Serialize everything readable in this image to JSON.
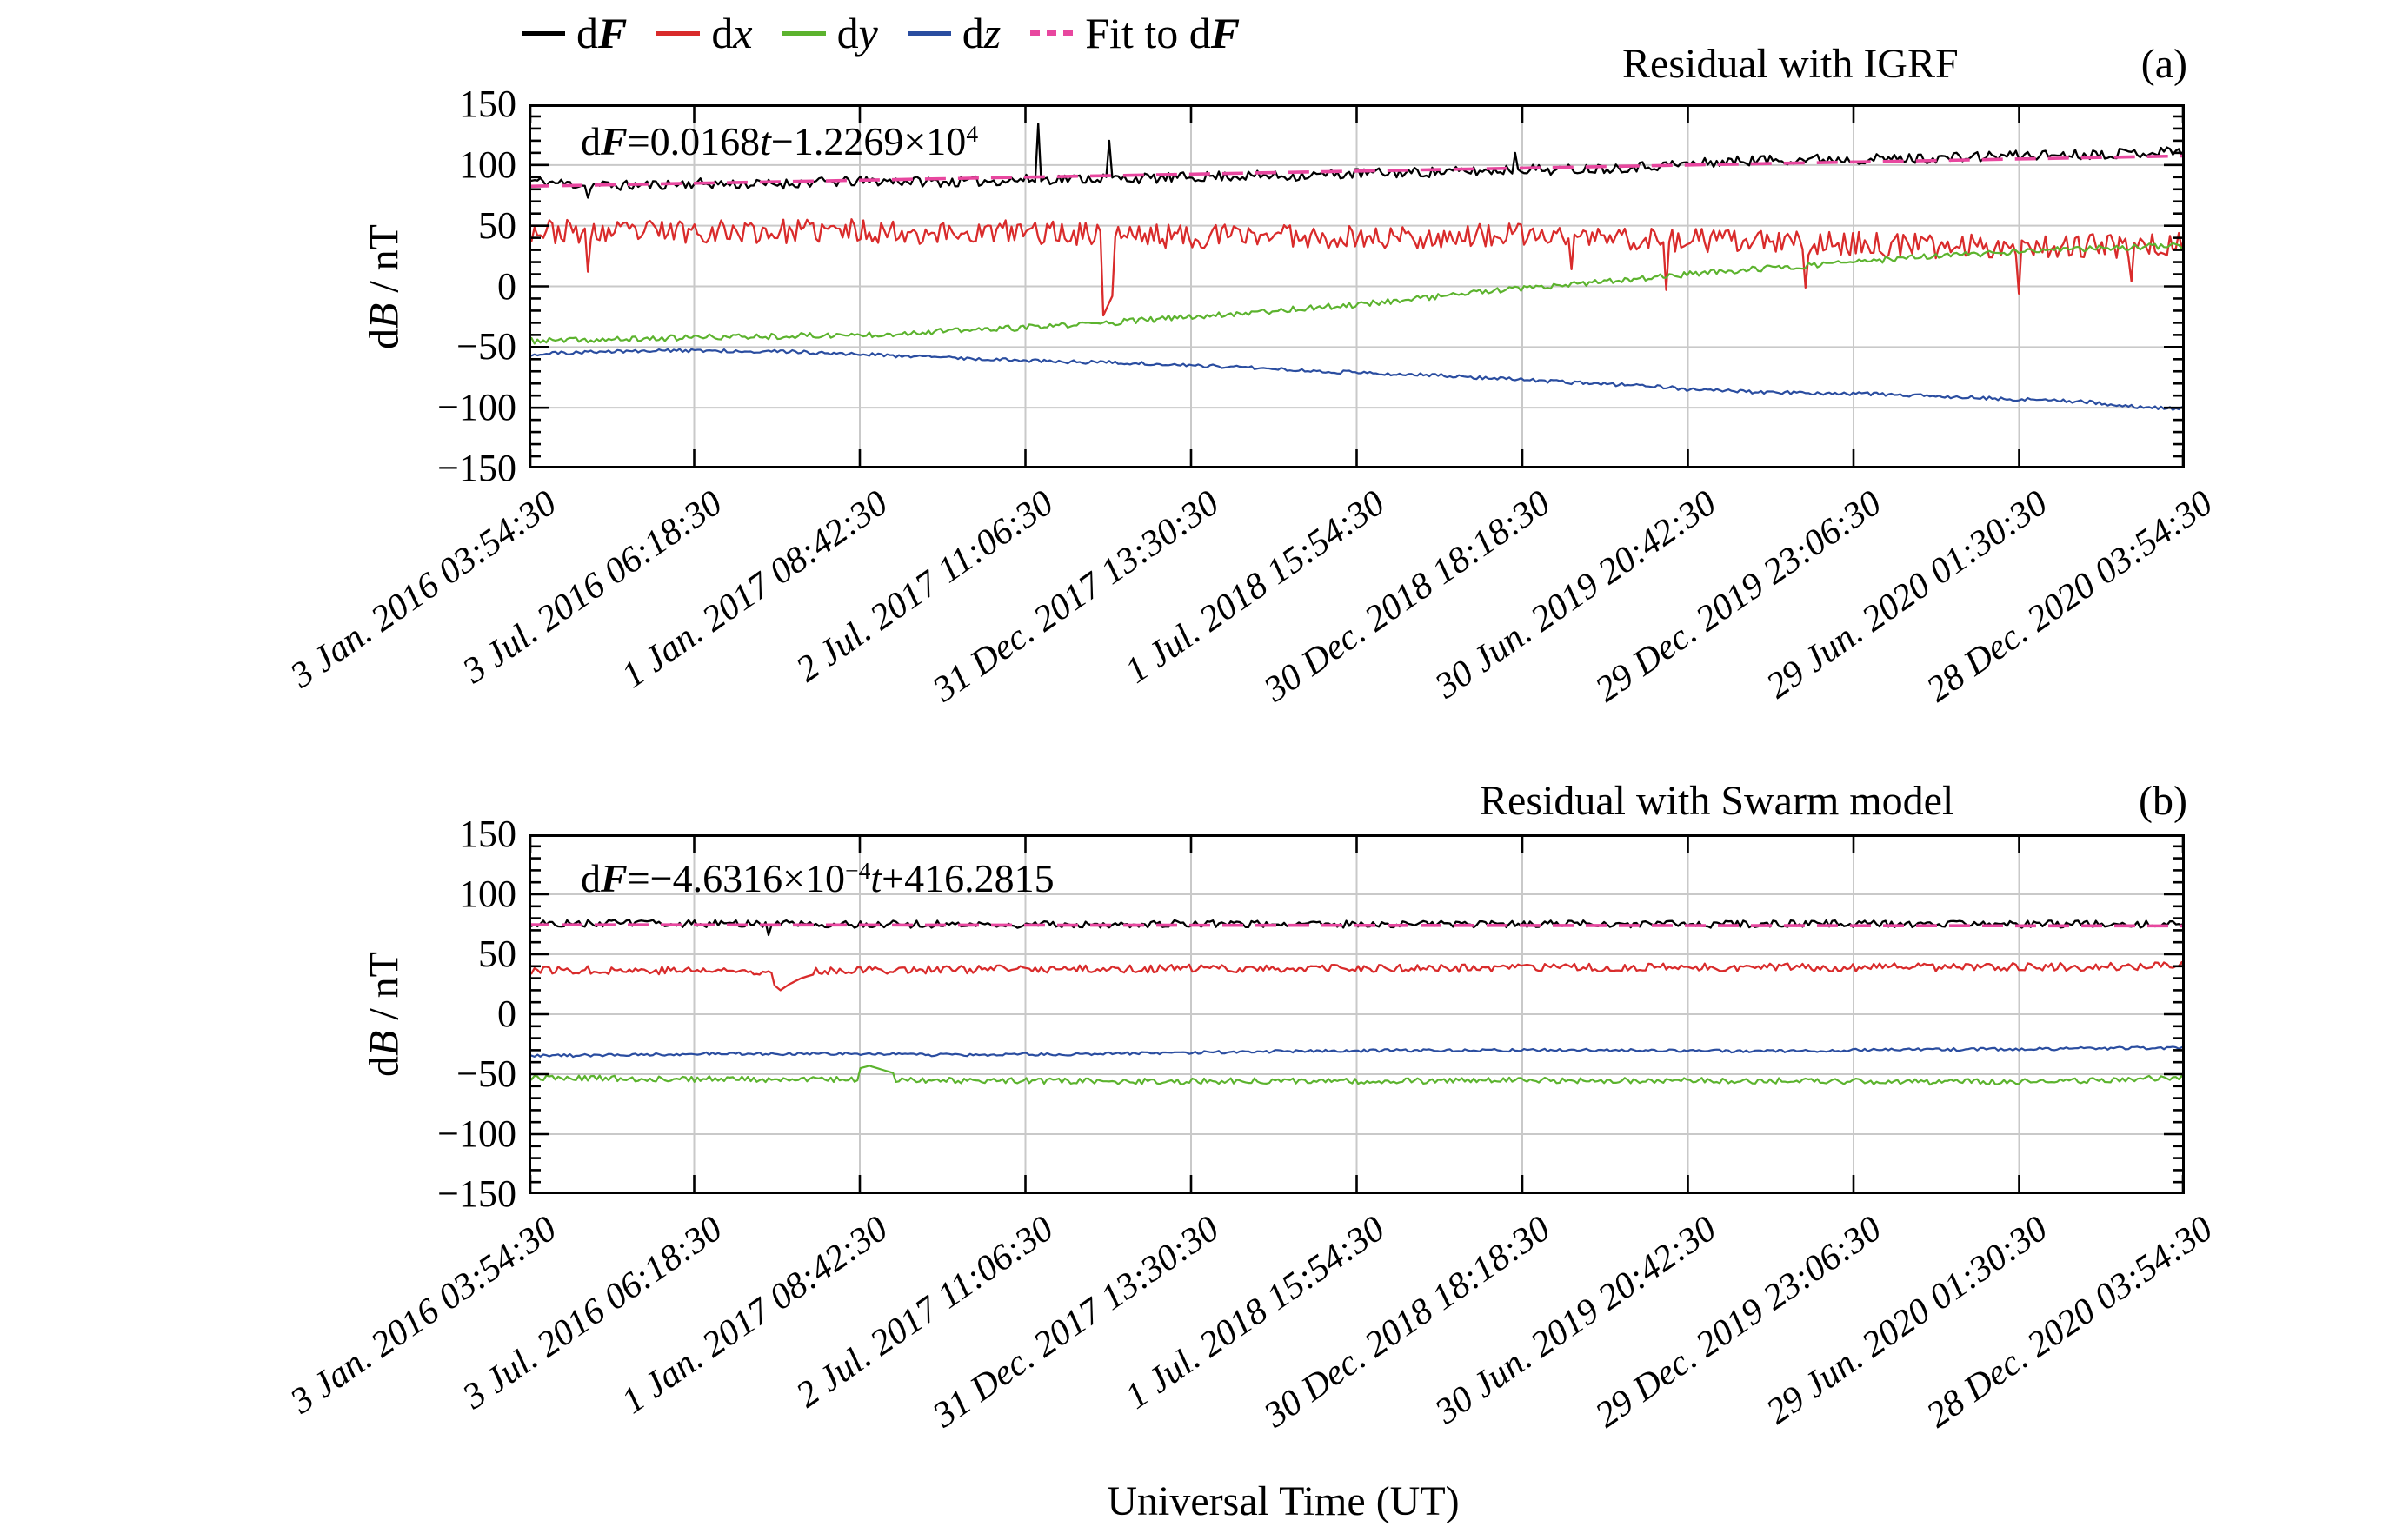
{
  "colors": {
    "dF": "#000000",
    "dx": "#d92b2b",
    "dy": "#5cb32e",
    "dz": "#2a4da0",
    "fit": "#e8479f",
    "grid": "#c9c9c9",
    "frame": "#000000",
    "background": "#ffffff"
  },
  "legend": {
    "items": [
      {
        "name": "dF",
        "label": "dF",
        "parts": [
          {
            "text": "d"
          },
          {
            "text": "F",
            "style": "bi"
          }
        ],
        "color": "#000000",
        "line": "solid"
      },
      {
        "name": "dx",
        "label": "dx",
        "parts": [
          {
            "text": "d"
          },
          {
            "text": "x",
            "style": "i"
          }
        ],
        "color": "#d92b2b",
        "line": "solid"
      },
      {
        "name": "dy",
        "label": "dy",
        "parts": [
          {
            "text": "d"
          },
          {
            "text": "y",
            "style": "i"
          }
        ],
        "color": "#5cb32e",
        "line": "solid"
      },
      {
        "name": "dz",
        "label": "dz",
        "parts": [
          {
            "text": "d"
          },
          {
            "text": "z",
            "style": "i"
          }
        ],
        "color": "#2a4da0",
        "line": "solid"
      },
      {
        "name": "fit",
        "label": "Fit to dF",
        "parts": [
          {
            "text": "Fit to d"
          },
          {
            "text": "F",
            "style": "bi"
          }
        ],
        "color": "#e8479f",
        "line": "dashed"
      }
    ]
  },
  "axes": {
    "y_label": "dB / nT",
    "y_label_parts": [
      {
        "text": "d"
      },
      {
        "text": "B",
        "style": "i"
      },
      {
        "text": " / nT"
      }
    ],
    "x_label": "Universal Time (UT)",
    "y_ticks": [
      150,
      100,
      50,
      0,
      -50,
      -100,
      -150
    ],
    "y_minor_step": 10,
    "grid_y": [
      100,
      50,
      0,
      -50,
      -100
    ],
    "x_tick_labels": [
      "3 Jan. 2016 03:54:30",
      "3 Jul. 2016 06:18:30",
      "1 Jan. 2017 08:42:30",
      "2 Jul. 2017 11:06:30",
      "31 Dec. 2017 13:30:30",
      "1 Jul. 2018 15:54:30",
      "30 Dec. 2018 18:18:30",
      "30 Jun. 2019 20:42:30",
      "29 Dec. 2019 23:06:30",
      "29 Jun. 2020 01:30:30",
      "28 Dec. 2020 03:54:30"
    ]
  },
  "chart_data": [
    {
      "type": "line",
      "panel": "a",
      "tag": "(a)",
      "title": "Residual with IGRF",
      "equation": "dF = 0.0168t − 1.2269×10⁴",
      "equation_parts": [
        {
          "text": "d"
        },
        {
          "text": "F",
          "style": "bi"
        },
        {
          "text": "="
        },
        {
          "text": "0.0168"
        },
        {
          "text": "t",
          "style": "i"
        },
        {
          "text": "−1.2269×10"
        },
        {
          "text": "4",
          "style": "sup"
        }
      ],
      "xlabel": "Universal Time (UT)",
      "ylabel": "dB / nT",
      "ylim": [
        -150,
        150
      ],
      "x_range": [
        "3 Jan. 2016 03:54:30",
        "28 Dec. 2020 03:54:30"
      ],
      "grid": true,
      "legend_position": "top",
      "series": [
        {
          "name": "dF",
          "color": "#000000",
          "width": 2.3,
          "noise": 4.2,
          "seed": 11,
          "anchors": [
            [
              0,
              87
            ],
            [
              0.03,
              84
            ],
            [
              0.06,
              83
            ],
            [
              0.1,
              85
            ],
            [
              0.14,
              84
            ],
            [
              0.18,
              86
            ],
            [
              0.22,
              87
            ],
            [
              0.26,
              86
            ],
            [
              0.3,
              88
            ],
            [
              0.34,
              89
            ],
            [
              0.38,
              89
            ],
            [
              0.42,
              91
            ],
            [
              0.46,
              91
            ],
            [
              0.5,
              93
            ],
            [
              0.54,
              94
            ],
            [
              0.58,
              95
            ],
            [
              0.6,
              97
            ],
            [
              0.62,
              96
            ],
            [
              0.66,
              98
            ],
            [
              0.7,
              101
            ],
            [
              0.74,
              104
            ],
            [
              0.78,
              105
            ],
            [
              0.82,
              105
            ],
            [
              0.86,
              106
            ],
            [
              0.9,
              108
            ],
            [
              0.94,
              109
            ],
            [
              0.97,
              110
            ],
            [
              1,
              112
            ]
          ],
          "spikes": [
            [
              0.035,
              73
            ],
            [
              0.307,
              134
            ],
            [
              0.35,
              120
            ],
            [
              0.595,
              110
            ]
          ]
        },
        {
          "name": "dx",
          "color": "#d92b2b",
          "width": 2.3,
          "noise": 10,
          "seed": 23,
          "anchors": [
            [
              0,
              46
            ],
            [
              0.05,
              44
            ],
            [
              0.1,
              46
            ],
            [
              0.15,
              45
            ],
            [
              0.2,
              46
            ],
            [
              0.25,
              44
            ],
            [
              0.3,
              45
            ],
            [
              0.35,
              43
            ],
            [
              0.4,
              41
            ],
            [
              0.45,
              43
            ],
            [
              0.5,
              40
            ],
            [
              0.55,
              41
            ],
            [
              0.6,
              42
            ],
            [
              0.65,
              40
            ],
            [
              0.7,
              38
            ],
            [
              0.75,
              36
            ],
            [
              0.8,
              35
            ],
            [
              0.85,
              33
            ],
            [
              0.9,
              34
            ],
            [
              0.95,
              33
            ],
            [
              1,
              35
            ]
          ],
          "spikes": [
            [
              0.036,
              12
            ],
            [
              0.347,
              -24
            ],
            [
              0.353,
              -8
            ],
            [
              0.63,
              14
            ],
            [
              0.687,
              -3
            ],
            [
              0.771,
              -1
            ],
            [
              0.9,
              -6
            ],
            [
              0.967,
              4
            ]
          ]
        },
        {
          "name": "dy",
          "color": "#5cb32e",
          "width": 2.2,
          "noise": 2.4,
          "seed": 37,
          "anchors": [
            [
              0,
              -45
            ],
            [
              0.05,
              -44
            ],
            [
              0.1,
              -42
            ],
            [
              0.15,
              -41
            ],
            [
              0.2,
              -40
            ],
            [
              0.25,
              -37
            ],
            [
              0.3,
              -34
            ],
            [
              0.35,
              -30
            ],
            [
              0.4,
              -25
            ],
            [
              0.45,
              -20
            ],
            [
              0.5,
              -15
            ],
            [
              0.55,
              -8
            ],
            [
              0.58,
              -4
            ],
            [
              0.62,
              0
            ],
            [
              0.66,
              5
            ],
            [
              0.7,
              10
            ],
            [
              0.74,
              14
            ],
            [
              0.78,
              18
            ],
            [
              0.82,
              22
            ],
            [
              0.85,
              25
            ],
            [
              0.88,
              27
            ],
            [
              0.92,
              30
            ],
            [
              0.96,
              32
            ],
            [
              1,
              34
            ]
          ],
          "spikes": []
        },
        {
          "name": "dz",
          "color": "#2a4da0",
          "width": 2.2,
          "noise": 1.4,
          "seed": 51,
          "anchors": [
            [
              0,
              -56
            ],
            [
              0.04,
              -54
            ],
            [
              0.08,
              -53
            ],
            [
              0.12,
              -53
            ],
            [
              0.16,
              -54
            ],
            [
              0.2,
              -56
            ],
            [
              0.24,
              -58
            ],
            [
              0.28,
              -60
            ],
            [
              0.32,
              -62
            ],
            [
              0.36,
              -63
            ],
            [
              0.4,
              -65
            ],
            [
              0.44,
              -67
            ],
            [
              0.48,
              -70
            ],
            [
              0.52,
              -72
            ],
            [
              0.56,
              -74
            ],
            [
              0.6,
              -77
            ],
            [
              0.64,
              -80
            ],
            [
              0.68,
              -82
            ],
            [
              0.7,
              -85
            ],
            [
              0.74,
              -87
            ],
            [
              0.78,
              -88
            ],
            [
              0.82,
              -89
            ],
            [
              0.86,
              -91
            ],
            [
              0.9,
              -93
            ],
            [
              0.94,
              -95
            ],
            [
              0.97,
              -99
            ],
            [
              1,
              -101
            ]
          ],
          "spikes": []
        },
        {
          "name": "Fit to dF",
          "color": "#e8479f",
          "width": 3.6,
          "dash": "24 14",
          "noise": 0,
          "seed": 1,
          "anchors": [
            [
              0,
              82.5
            ],
            [
              1,
              107.5
            ]
          ],
          "spikes": []
        }
      ]
    },
    {
      "type": "line",
      "panel": "b",
      "tag": "(b)",
      "title": "Residual with Swarm model",
      "equation": "dF = −4.6316×10⁻⁴t + 416.2815",
      "equation_parts": [
        {
          "text": "d"
        },
        {
          "text": "F",
          "style": "bi"
        },
        {
          "text": "="
        },
        {
          "text": "−4.6316×10"
        },
        {
          "text": "−4",
          "style": "sup"
        },
        {
          "text": "t",
          "style": "i"
        },
        {
          "text": "+416.2815"
        }
      ],
      "xlabel": "Universal Time (UT)",
      "ylabel": "dB / nT",
      "ylim": [
        -150,
        150
      ],
      "x_range": [
        "3 Jan. 2016 03:54:30",
        "28 Dec. 2020 03:54:30"
      ],
      "grid": true,
      "legend_position": "shared-top",
      "series": [
        {
          "name": "dF",
          "color": "#000000",
          "width": 2.3,
          "noise": 3.0,
          "seed": 63,
          "anchors": [
            [
              0,
              76
            ],
            [
              0.1,
              75.5
            ],
            [
              0.2,
              75
            ],
            [
              0.3,
              75
            ],
            [
              0.4,
              75.5
            ],
            [
              0.5,
              75
            ],
            [
              0.6,
              75.5
            ],
            [
              0.7,
              75
            ],
            [
              0.8,
              75.5
            ],
            [
              0.9,
              75
            ],
            [
              1,
              75
            ]
          ],
          "spikes": [
            [
              0.145,
              66
            ]
          ]
        },
        {
          "name": "dx",
          "color": "#d92b2b",
          "width": 2.3,
          "noise": 3.4,
          "seed": 77,
          "anchors": [
            [
              0,
              37
            ],
            [
              0.1,
              36.5
            ],
            [
              0.13,
              36
            ],
            [
              0.2,
              37
            ],
            [
              0.3,
              37.5
            ],
            [
              0.4,
              38
            ],
            [
              0.5,
              38
            ],
            [
              0.6,
              38.5
            ],
            [
              0.7,
              39
            ],
            [
              0.8,
              39
            ],
            [
              0.9,
              39.5
            ],
            [
              1,
              40
            ]
          ],
          "spikes": [
            [
              0.148,
              24
            ],
            [
              0.152,
              20
            ],
            [
              0.158,
              25
            ],
            [
              0.165,
              30
            ],
            [
              0.172,
              33
            ]
          ]
        },
        {
          "name": "dy",
          "color": "#5cb32e",
          "width": 2.2,
          "noise": 2.4,
          "seed": 89,
          "anchors": [
            [
              0,
              -53
            ],
            [
              0.05,
              -53.5
            ],
            [
              0.1,
              -54
            ],
            [
              0.15,
              -54.5
            ],
            [
              0.2,
              -54
            ],
            [
              0.25,
              -55
            ],
            [
              0.3,
              -55.5
            ],
            [
              0.35,
              -56
            ],
            [
              0.4,
              -56
            ],
            [
              0.45,
              -55.5
            ],
            [
              0.5,
              -56
            ],
            [
              0.55,
              -55.5
            ],
            [
              0.6,
              -55
            ],
            [
              0.65,
              -55.5
            ],
            [
              0.7,
              -55
            ],
            [
              0.75,
              -55.5
            ],
            [
              0.8,
              -56
            ],
            [
              0.85,
              -56.5
            ],
            [
              0.9,
              -56
            ],
            [
              0.95,
              -55
            ],
            [
              1,
              -52
            ]
          ],
          "spikes": [
            [
              0.2,
              -45
            ],
            [
              0.205,
              -43
            ],
            [
              0.212,
              -46
            ],
            [
              0.22,
              -49
            ]
          ]
        },
        {
          "name": "dz",
          "color": "#2a4da0",
          "width": 2.2,
          "noise": 1.2,
          "seed": 95,
          "anchors": [
            [
              0,
              -35
            ],
            [
              0.05,
              -34
            ],
            [
              0.1,
              -33
            ],
            [
              0.15,
              -33
            ],
            [
              0.2,
              -33
            ],
            [
              0.25,
              -34
            ],
            [
              0.3,
              -33.5
            ],
            [
              0.35,
              -33
            ],
            [
              0.4,
              -32
            ],
            [
              0.45,
              -31
            ],
            [
              0.5,
              -30.5
            ],
            [
              0.55,
              -30
            ],
            [
              0.6,
              -30
            ],
            [
              0.65,
              -30
            ],
            [
              0.7,
              -30.5
            ],
            [
              0.75,
              -31
            ],
            [
              0.8,
              -30
            ],
            [
              0.85,
              -29.5
            ],
            [
              0.9,
              -29
            ],
            [
              0.95,
              -28.5
            ],
            [
              1,
              -28
            ]
          ],
          "spikes": []
        },
        {
          "name": "Fit to dF",
          "color": "#e8479f",
          "width": 3.6,
          "dash": "24 14",
          "noise": 0,
          "seed": 1,
          "anchors": [
            [
              0,
              74.6
            ],
            [
              1,
              73.6
            ]
          ],
          "spikes": []
        }
      ]
    }
  ]
}
